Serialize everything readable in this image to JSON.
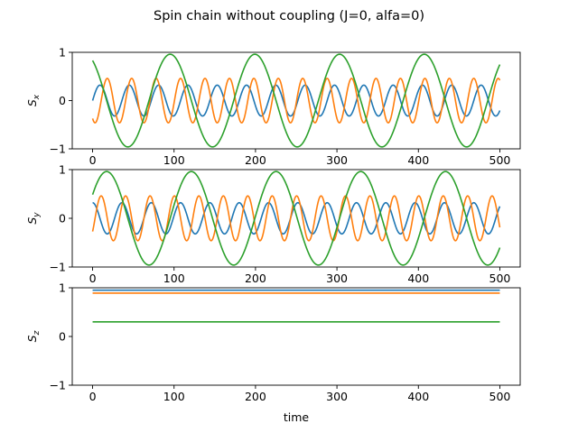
{
  "chart_data": [
    {
      "type": "line",
      "ylabel": "S_x",
      "ylabel_main": "S",
      "ylabel_sub": "x",
      "xlim": [
        0,
        500
      ],
      "ylim": [
        -1,
        1
      ],
      "xticks": [
        "0",
        "100",
        "200",
        "300",
        "400",
        "500"
      ],
      "yticks": [
        "1",
        "0",
        "−1"
      ],
      "series": [
        {
          "color": "#1f77b4",
          "kind": "sine",
          "amplitude": 0.32,
          "period": 36.0,
          "phase": 0.0,
          "offset": 0.0,
          "t_range": [
            0,
            500
          ]
        },
        {
          "color": "#ff7f0e",
          "kind": "sine",
          "amplitude": 0.46,
          "period": 30.0,
          "phase": -2.2,
          "offset": 0.0,
          "t_range": [
            0,
            500
          ]
        },
        {
          "color": "#2ca02c",
          "kind": "sine",
          "amplitude": 0.96,
          "period": 104.0,
          "phase": 2.1,
          "offset": 0.0,
          "t_range": [
            0,
            500
          ]
        }
      ]
    },
    {
      "type": "line",
      "ylabel": "S_y",
      "ylabel_main": "S",
      "ylabel_sub": "y",
      "xlim": [
        0,
        500
      ],
      "ylim": [
        -1,
        1
      ],
      "xticks": [
        "0",
        "100",
        "200",
        "300",
        "400",
        "500"
      ],
      "yticks": [
        "1",
        "0",
        "−1"
      ],
      "series": [
        {
          "color": "#1f77b4",
          "kind": "sine",
          "amplitude": 0.32,
          "period": 36.0,
          "phase": 1.5708,
          "offset": 0.0,
          "t_range": [
            0,
            500
          ]
        },
        {
          "color": "#ff7f0e",
          "kind": "sine",
          "amplitude": 0.46,
          "period": 30.0,
          "phase": -0.63,
          "offset": 0.0,
          "t_range": [
            0,
            500
          ]
        },
        {
          "color": "#2ca02c",
          "kind": "sine",
          "amplitude": 0.96,
          "period": 104.0,
          "phase": 0.53,
          "offset": 0.0,
          "t_range": [
            0,
            500
          ]
        }
      ]
    },
    {
      "type": "line",
      "ylabel": "S_z",
      "ylabel_main": "S",
      "ylabel_sub": "z",
      "xlabel": "time",
      "xlim": [
        0,
        500
      ],
      "ylim": [
        -1,
        1
      ],
      "xticks": [
        "0",
        "100",
        "200",
        "300",
        "400",
        "500"
      ],
      "yticks": [
        "1",
        "0",
        "−1"
      ],
      "series": [
        {
          "color": "#1f77b4",
          "kind": "constant",
          "offset": 0.95,
          "t_range": [
            0,
            500
          ]
        },
        {
          "color": "#ff7f0e",
          "kind": "constant",
          "offset": 0.89,
          "t_range": [
            0,
            500
          ]
        },
        {
          "color": "#2ca02c",
          "kind": "constant",
          "offset": 0.3,
          "t_range": [
            0,
            500
          ]
        }
      ]
    }
  ],
  "figure": {
    "title": "Spin chain without coupling (J=0, alfa=0)",
    "xlabel": "time"
  }
}
